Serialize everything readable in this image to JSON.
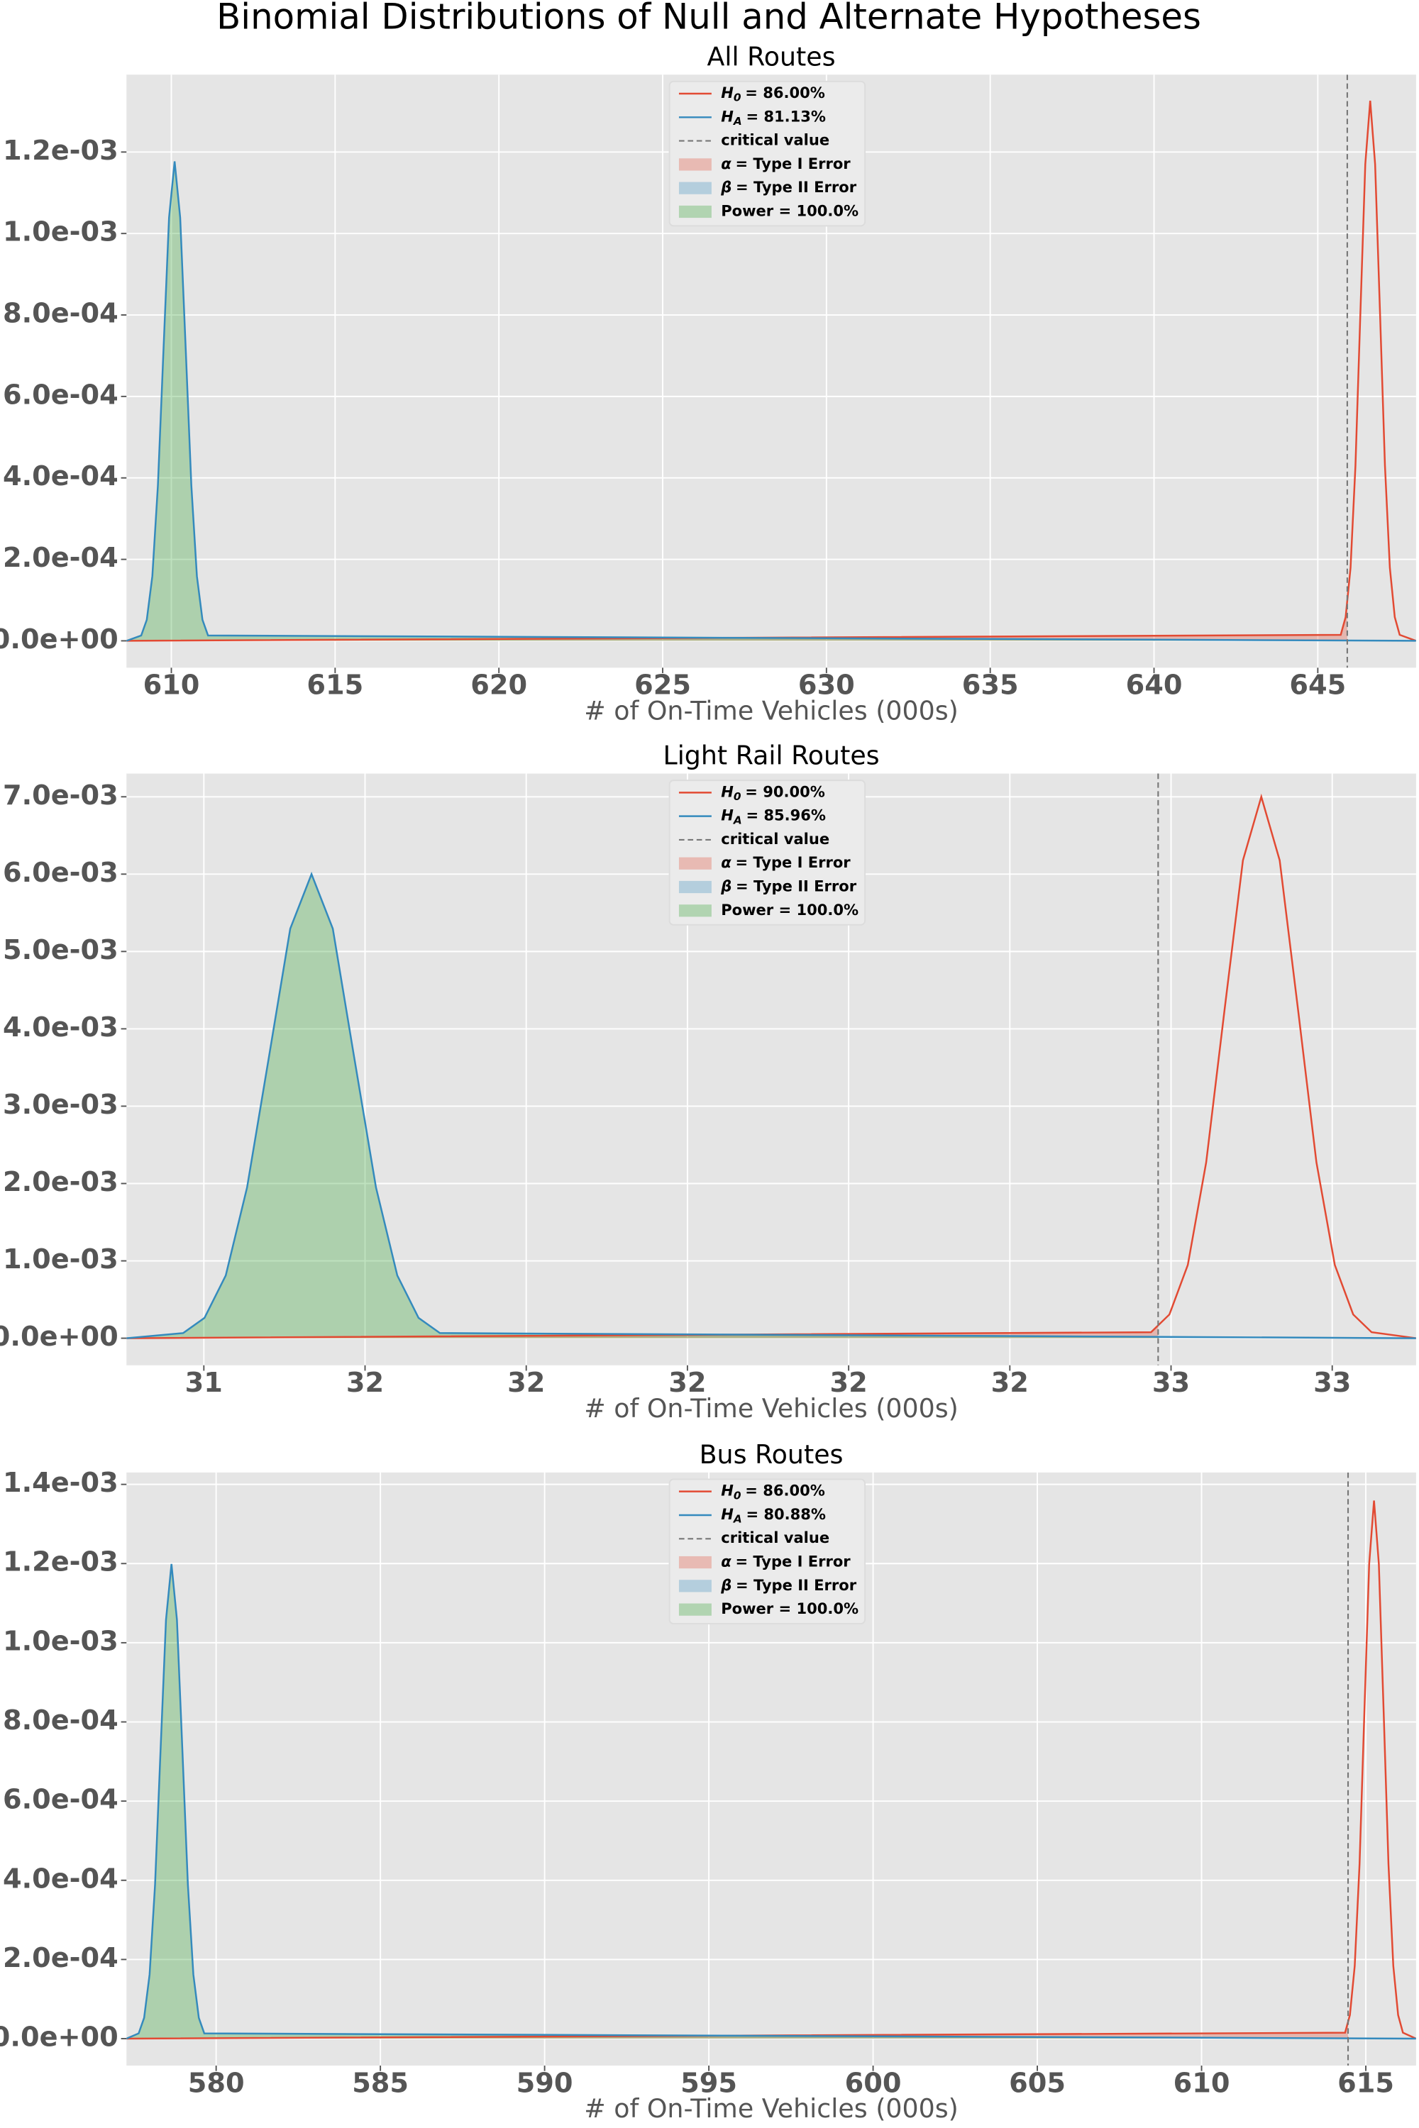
{
  "title": "Binomial Distributions of Null and Alternate Hypotheses",
  "chart_data": [
    {
      "type": "line",
      "title": "All Routes",
      "xlabel": "# of On-Time Vehicles (000s)",
      "xlim": [
        608.63,
        648.0
      ],
      "ylim": [
        -6.6e-05,
        0.00139
      ],
      "xticks": [
        610,
        615,
        620,
        625,
        630,
        635,
        640,
        645
      ],
      "yticks": [
        {
          "value": 0,
          "label": "0.0e+00"
        },
        {
          "value": 0.0002,
          "label": "2.0e-04"
        },
        {
          "value": 0.0004,
          "label": "4.0e-04"
        },
        {
          "value": 0.0006,
          "label": "6.0e-04"
        },
        {
          "value": 0.0008,
          "label": "8.0e-04"
        },
        {
          "value": 0.001,
          "label": "1.0e-03"
        },
        {
          "value": 0.0012,
          "label": "1.2e-03"
        }
      ],
      "grid": true,
      "critical_value": 645.9,
      "critical_label": "critical value",
      "critical_color": "#777777",
      "series": [
        {
          "name": "H",
          "subscript": "0",
          "label": "= 86.00%",
          "color": "#E24A33",
          "x": [
            608.63,
            645.7,
            645.85,
            646.0,
            646.15,
            646.3,
            646.45,
            646.6,
            646.75,
            646.9,
            647.05,
            647.2,
            647.35,
            647.5,
            648.0
          ],
          "values": [
            0,
            1.47e-05,
            5.82e-05,
            0.0001794,
            0.0004305,
            0.0008042,
            0.0011702,
            0.001326,
            0.0011702,
            0.0008042,
            0.0004305,
            0.0001794,
            5.82e-05,
            1.47e-05,
            0
          ]
        },
        {
          "name": "H",
          "subscript": "A",
          "label": "= 81.13%",
          "color": "#348ABD",
          "x": [
            608.63,
            609.08,
            609.25,
            609.42,
            609.59,
            609.76,
            609.93,
            610.1,
            610.27,
            610.44,
            610.61,
            610.78,
            610.95,
            611.12,
            648.0
          ],
          "values": [
            0,
            1.31e-05,
            5.17e-05,
            0.000159,
            0.000382,
            0.000714,
            0.001039,
            0.001177,
            0.001039,
            0.000714,
            0.000382,
            0.000159,
            5.17e-05,
            1.31e-05,
            0
          ]
        }
      ],
      "fills": [
        {
          "symbol": "α",
          "label": "= Type I Error",
          "color": "#E24A33",
          "series": 0,
          "side": "left"
        },
        {
          "symbol": "β",
          "label": "= Type II Error",
          "color": "#348ABD",
          "series": 1,
          "side": "right"
        },
        {
          "label": "Power = 100.0%",
          "color": "#2ca02c",
          "series": 1,
          "side": "left"
        }
      ]
    },
    {
      "type": "line",
      "title": "Light Rail Routes",
      "xlabel": "# of On-Time Vehicles (000s)",
      "xlim": [
        31.13,
        33.13
      ],
      "ylim": [
        -0.00035,
        0.0073
      ],
      "xticks": [
        {
          "value": 31.25,
          "label": "31"
        },
        {
          "value": 31.5,
          "label": "32"
        },
        {
          "value": 31.75,
          "label": "32"
        },
        {
          "value": 32.0,
          "label": "32"
        },
        {
          "value": 32.25,
          "label": "32"
        },
        {
          "value": 32.5,
          "label": "32"
        },
        {
          "value": 32.75,
          "label": "33"
        },
        {
          "value": 33.0,
          "label": "33"
        }
      ],
      "yticks": [
        {
          "value": 0,
          "label": "0.0e+00"
        },
        {
          "value": 0.001,
          "label": "1.0e-03"
        },
        {
          "value": 0.002,
          "label": "2.0e-03"
        },
        {
          "value": 0.003,
          "label": "3.0e-03"
        },
        {
          "value": 0.004,
          "label": "4.0e-03"
        },
        {
          "value": 0.005,
          "label": "5.0e-03"
        },
        {
          "value": 0.006,
          "label": "6.0e-03"
        },
        {
          "value": 0.007,
          "label": "7.0e-03"
        }
      ],
      "grid": true,
      "critical_value": 32.73,
      "critical_label": "critical value",
      "critical_color": "#777777",
      "series": [
        {
          "name": "H",
          "subscript": "0",
          "label": "= 90.00%",
          "color": "#E24A33",
          "x": [
            31.13,
            32.719,
            32.7475,
            32.776,
            32.8045,
            32.833,
            32.8615,
            32.89,
            32.9185,
            32.947,
            32.9755,
            33.004,
            33.0325,
            33.061,
            33.13
          ],
          "values": [
            0,
            7.77e-05,
            0.000307,
            0.000947,
            0.002273,
            0.004246,
            0.006178,
            0.007,
            0.006178,
            0.004246,
            0.002273,
            0.000947,
            0.000307,
            7.77e-05,
            0
          ]
        },
        {
          "name": "H",
          "subscript": "A",
          "label": "= 85.96%",
          "color": "#348ABD",
          "x": [
            31.13,
            31.218,
            31.251,
            31.284,
            31.317,
            31.351,
            31.384,
            31.417,
            31.45,
            31.483,
            31.517,
            31.55,
            31.583,
            31.616,
            33.13
          ],
          "values": [
            0,
            6.66e-05,
            0.000263,
            0.000812,
            0.001948,
            0.003639,
            0.005295,
            0.006,
            0.005295,
            0.003639,
            0.001948,
            0.000812,
            0.000263,
            6.66e-05,
            0
          ]
        }
      ],
      "fills": [
        {
          "symbol": "α",
          "label": "= Type I Error",
          "color": "#E24A33",
          "series": 0,
          "side": "left"
        },
        {
          "symbol": "β",
          "label": "= Type II Error",
          "color": "#348ABD",
          "series": 1,
          "side": "right"
        },
        {
          "label": "Power = 100.0%",
          "color": "#2ca02c",
          "series": 1,
          "side": "left"
        }
      ]
    },
    {
      "type": "line",
      "title": "Bus Routes",
      "xlabel": "# of On-Time Vehicles (000s)",
      "xlim": [
        577.27,
        616.53
      ],
      "ylim": [
        -6.8e-05,
        0.00143
      ],
      "xticks": [
        580,
        585,
        590,
        595,
        600,
        605,
        610,
        615
      ],
      "yticks": [
        {
          "value": 0,
          "label": "0.0e+00"
        },
        {
          "value": 0.0002,
          "label": "2.0e-04"
        },
        {
          "value": 0.0004,
          "label": "4.0e-04"
        },
        {
          "value": 0.0006,
          "label": "6.0e-04"
        },
        {
          "value": 0.0008,
          "label": "8.0e-04"
        },
        {
          "value": 0.001,
          "label": "1.0e-03"
        },
        {
          "value": 0.0012,
          "label": "1.2e-03"
        },
        {
          "value": 0.0014,
          "label": "1.4e-03"
        }
      ],
      "grid": true,
      "critical_value": 614.46,
      "critical_label": "critical value",
      "critical_color": "#777777",
      "series": [
        {
          "name": "H",
          "subscript": "0",
          "label": "= 86.00%",
          "color": "#E24A33",
          "x": [
            577.27,
            614.3695,
            614.516,
            614.663,
            614.81,
            614.9565,
            615.103,
            615.25,
            615.397,
            615.544,
            615.69,
            615.837,
            615.984,
            616.13,
            616.53
          ],
          "values": [
            0,
            1.51e-05,
            5.97e-05,
            0.0001839,
            0.0004413,
            0.0008242,
            0.0011993,
            0.001359,
            0.0011993,
            0.0008242,
            0.0004413,
            0.0001839,
            5.97e-05,
            1.51e-05,
            0
          ]
        },
        {
          "name": "H",
          "subscript": "A",
          "label": "= 80.88%",
          "color": "#348ABD",
          "x": [
            577.27,
            577.641,
            577.8075,
            577.974,
            578.1405,
            578.307,
            578.4735,
            578.64,
            578.8065,
            578.973,
            579.1395,
            579.306,
            579.4725,
            579.639,
            616.53
          ],
          "values": [
            0,
            1.33e-05,
            5.26e-05,
            0.0001622,
            0.0003893,
            0.0007272,
            0.0010581,
            0.001199,
            0.0010581,
            0.0007272,
            0.0003893,
            0.0001622,
            5.26e-05,
            1.33e-05,
            0
          ]
        }
      ],
      "fills": [
        {
          "symbol": "α",
          "label": "= Type I Error",
          "color": "#E24A33",
          "series": 0,
          "side": "left"
        },
        {
          "symbol": "β",
          "label": "= Type II Error",
          "color": "#348ABD",
          "series": 1,
          "side": "right"
        },
        {
          "label": "Power = 100.0%",
          "color": "#2ca02c",
          "series": 1,
          "side": "left"
        }
      ]
    }
  ]
}
